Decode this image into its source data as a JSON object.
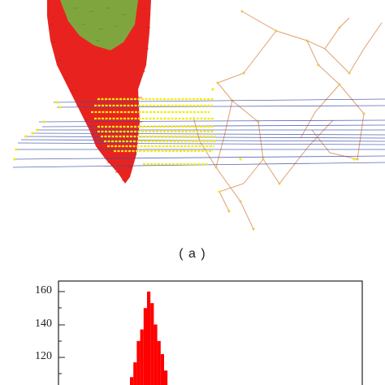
{
  "panel_a": {
    "label": "( a )"
  },
  "panel_b": {
    "y_tick_labels": [
      "160",
      "140",
      "120"
    ]
  },
  "chart_data": {
    "type": "bar",
    "title": "",
    "xlabel": "",
    "ylabel": "",
    "ylim": [
      100,
      167
    ],
    "y_ticks": [
      120,
      140,
      160
    ],
    "grid": false,
    "legend": "none",
    "series": [
      {
        "color": "#ff0000",
        "values": [
          108,
          117,
          130,
          137,
          150,
          160,
          153,
          140,
          130,
          122,
          112
        ]
      }
    ]
  },
  "colors": {
    "red": "#e8231f",
    "green": "#7fa63e",
    "yellow": "#f5ea14",
    "blue_lines": "#3d4fa8",
    "orange_lines": "#e0a070",
    "bar_red": "#ff0000",
    "axis": "#222222"
  }
}
